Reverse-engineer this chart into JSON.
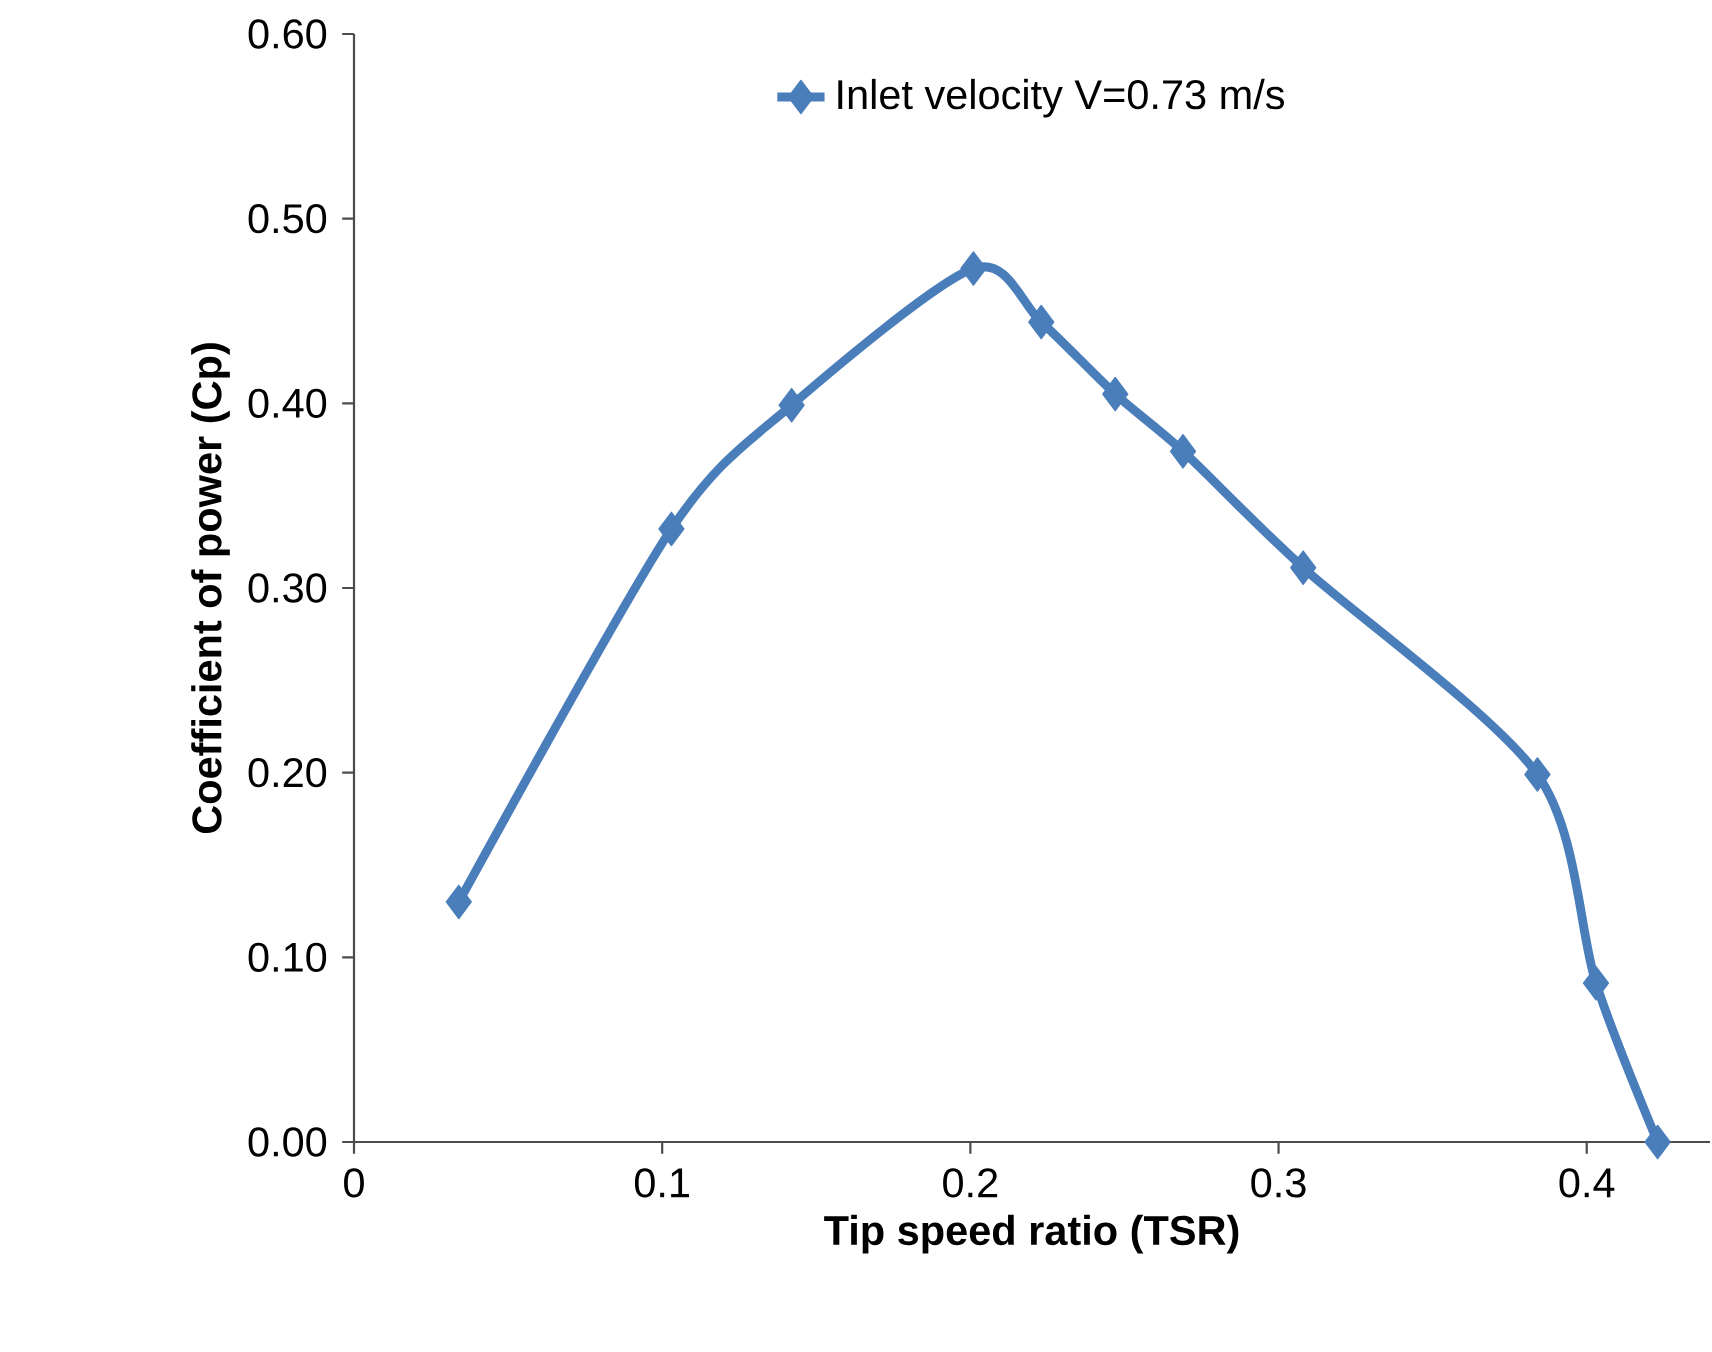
{
  "chart_data": {
    "type": "line",
    "xlabel": "Tip speed ratio (TSR)",
    "ylabel": "Coefficient of power (Cp)",
    "x": [
      0.034,
      0.103,
      0.142,
      0.201,
      0.223,
      0.247,
      0.269,
      0.308,
      0.384,
      0.403,
      0.423
    ],
    "series": [
      {
        "name": "Inlet velocity V=0.73 m/s",
        "color": "#4a7ebb",
        "values": [
          0.13,
          0.332,
          0.399,
          0.473,
          0.444,
          0.405,
          0.374,
          0.311,
          0.199,
          0.086,
          0.0
        ]
      }
    ],
    "xlim": [
      0,
      0.44
    ],
    "ylim": [
      0,
      0.6
    ],
    "xticks": [
      0,
      0.1,
      0.2,
      0.3,
      0.4
    ],
    "yticks": [
      {
        "value": 0,
        "label": "0.00"
      },
      {
        "value": 0.1,
        "label": "0.10"
      },
      {
        "value": 0.2,
        "label": "0.20"
      },
      {
        "value": 0.3,
        "label": "0.30"
      },
      {
        "value": 0.4,
        "label": "0.40"
      },
      {
        "value": 0.5,
        "label": "0.50"
      },
      {
        "value": 0.6,
        "label": "0.60"
      }
    ],
    "legend": "top",
    "marker": "diamond"
  }
}
